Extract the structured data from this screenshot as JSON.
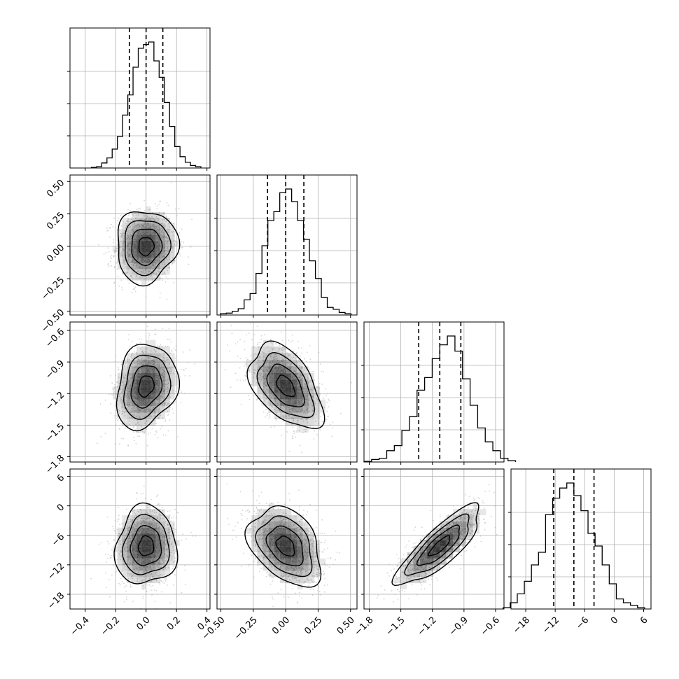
{
  "chart_data": {
    "type": "corner",
    "n_params": 4,
    "parameters": [
      {
        "index": 0,
        "range": [
          -0.5,
          0.42
        ],
        "ticks": [
          -0.4,
          -0.2,
          0.0,
          0.2,
          0.4
        ],
        "tick_labels": [
          "−0.4",
          "−0.2",
          "0.0",
          "0.2",
          "0.4"
        ],
        "mean": 0.0,
        "sd": 0.1,
        "quantiles": [
          -0.11,
          0.0,
          0.11
        ],
        "hist": [
          0.005,
          0.01,
          0.04,
          0.08,
          0.15,
          0.25,
          0.42,
          0.58,
          0.8,
          0.95,
          0.98,
          1.0,
          0.85,
          0.72,
          0.52,
          0.33,
          0.17,
          0.09,
          0.045,
          0.02,
          0.01
        ]
      },
      {
        "index": 1,
        "range": [
          -0.53,
          0.55
        ],
        "ticks": [
          -0.5,
          -0.25,
          0.0,
          0.25,
          0.5
        ],
        "tick_labels": [
          "−0.50",
          "−0.25",
          "0.00",
          "0.25",
          "0.50"
        ],
        "mean": 0.0,
        "sd": 0.14,
        "quantiles": [
          -0.14,
          0.0,
          0.14
        ],
        "hist": [
          0.01,
          0.015,
          0.03,
          0.05,
          0.12,
          0.17,
          0.33,
          0.55,
          0.75,
          0.82,
          0.97,
          1.0,
          0.9,
          0.75,
          0.6,
          0.43,
          0.29,
          0.14,
          0.06,
          0.045,
          0.02,
          0.01
        ]
      },
      {
        "index": 2,
        "range": [
          -1.85,
          -0.52
        ],
        "ticks": [
          -1.8,
          -1.5,
          -1.2,
          -0.9,
          -0.6
        ],
        "tick_labels": [
          "−1.8",
          "−1.5",
          "−1.2",
          "−0.9",
          "−0.6"
        ],
        "mean": -1.13,
        "sd": 0.2,
        "quantiles": [
          -1.33,
          -1.13,
          -0.93
        ],
        "hist": [
          0.005,
          0.02,
          0.03,
          0.09,
          0.13,
          0.25,
          0.36,
          0.57,
          0.67,
          0.82,
          0.93,
          1.0,
          0.88,
          0.66,
          0.45,
          0.27,
          0.16,
          0.09,
          0.03,
          0.01
        ]
      },
      {
        "index": 3,
        "range": [
          -21,
          7.5
        ],
        "ticks": [
          -18,
          -12,
          -6,
          0,
          6
        ],
        "tick_labels": [
          "−18",
          "−12",
          "−6",
          "0",
          "6"
        ],
        "mean": -8.2,
        "sd": 4.0,
        "quantiles": [
          -12.3,
          -8.2,
          -4.1
        ],
        "hist": [
          0.01,
          0.05,
          0.12,
          0.22,
          0.35,
          0.45,
          0.75,
          0.88,
          0.96,
          1.0,
          0.9,
          0.78,
          0.6,
          0.5,
          0.35,
          0.2,
          0.08,
          0.05,
          0.03,
          0.01
        ]
      }
    ],
    "correlations": [
      {
        "x": 0,
        "y": 1,
        "rho": 0.05
      },
      {
        "x": 0,
        "y": 2,
        "rho": 0.2
      },
      {
        "x": 1,
        "y": 2,
        "rho": -0.48
      },
      {
        "x": 0,
        "y": 3,
        "rho": 0.05
      },
      {
        "x": 1,
        "y": 3,
        "rho": -0.35
      },
      {
        "x": 2,
        "y": 3,
        "rho": 0.82
      }
    ],
    "grid": true,
    "contour_levels": [
      0.5,
      1.0,
      1.5,
      2.0
    ],
    "colors": {
      "line": "#000000",
      "point": "#b8b8b8",
      "density": "#000000",
      "grid": "#b0b0b0",
      "background": "#ffffff"
    }
  }
}
